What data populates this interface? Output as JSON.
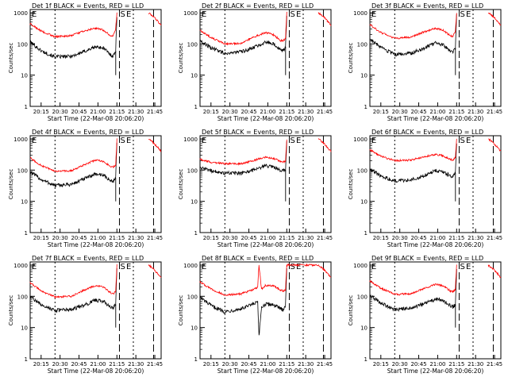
{
  "chart_data": [
    {
      "type": "line",
      "title": "Det 1f BLACK = Events, RED = LLD",
      "xlabel": "Start Time (22-Mar-08 20:06:20)",
      "ylabel": "Counts/sec",
      "x_ticks": [
        "20:15",
        "20:30",
        "20:45",
        "21:00",
        "21:15",
        "21:30",
        "21:45"
      ],
      "y_ticks": [
        "1",
        "10",
        "100",
        "1000"
      ],
      "y_scale": "log",
      "marker_labels": [
        "S",
        "E"
      ],
      "series": [
        {
          "name": "BLACK = Events",
          "color": "#000000"
        },
        {
          "name": "RED = LLD",
          "color": "#ff0000"
        }
      ],
      "x": [
        "20:06",
        "20:15",
        "20:26",
        "20:39",
        "20:48",
        "20:58",
        "21:04",
        "21:10",
        "21:12",
        "21:14",
        "21:15",
        "21:17",
        "21:22",
        "21:28",
        "21:34",
        "21:40",
        "21:44",
        "21:47",
        "21:50"
      ],
      "y_black": [
        120,
        60,
        38,
        40,
        55,
        80,
        75,
        45,
        40,
        60,
        800,
        null,
        null,
        null,
        null,
        null,
        null,
        null,
        null
      ],
      "y_red": [
        450,
        260,
        170,
        185,
        250,
        320,
        280,
        180,
        180,
        300,
        1000,
        null,
        null,
        null,
        null,
        1000,
        750,
        550,
        400
      ],
      "y_black_minimum": [
        null,
        null,
        null,
        null,
        null,
        null,
        null,
        null,
        null,
        null,
        10,
        null,
        null,
        null,
        null,
        null,
        null,
        null,
        null
      ]
    },
    {
      "type": "line",
      "title": "Det 2f BLACK = Events, RED = LLD",
      "xlabel": "Start Time (22-Mar-08 20:06:20)",
      "ylabel": "Counts/sec",
      "x_ticks": [
        "20:15",
        "20:30",
        "20:45",
        "21:00",
        "21:15",
        "21:30",
        "21:45"
      ],
      "y_ticks": [
        "1",
        "10",
        "100",
        "1000"
      ],
      "y_scale": "log",
      "marker_labels": [
        "S",
        "E"
      ],
      "series": [
        {
          "name": "BLACK = Events",
          "color": "#000000"
        },
        {
          "name": "RED = LLD",
          "color": "#ff0000"
        }
      ],
      "x": [
        "20:06",
        "20:15",
        "20:26",
        "20:39",
        "20:48",
        "20:58",
        "21:04",
        "21:10",
        "21:12",
        "21:14",
        "21:15",
        "21:17",
        "21:22",
        "21:28",
        "21:34",
        "21:40",
        "21:44",
        "21:47",
        "21:50"
      ],
      "y_black": [
        130,
        75,
        50,
        55,
        75,
        115,
        105,
        65,
        60,
        80,
        800,
        null,
        null,
        null,
        null,
        null,
        null,
        null,
        null
      ],
      "y_red": [
        280,
        160,
        100,
        105,
        160,
        230,
        200,
        130,
        125,
        150,
        1000,
        null,
        null,
        null,
        null,
        1000,
        750,
        550,
        400
      ],
      "y_black_minimum": [
        null,
        null,
        null,
        null,
        null,
        null,
        null,
        null,
        null,
        null,
        10,
        null,
        null,
        null,
        null,
        null,
        null,
        null,
        null
      ]
    },
    {
      "type": "line",
      "title": "Det 3f BLACK = Events, RED = LLD",
      "xlabel": "Start Time (22-Mar-08 20:06:20)",
      "ylabel": "Counts/sec",
      "x_ticks": [
        "20:15",
        "20:30",
        "20:45",
        "21:00",
        "21:15",
        "21:30",
        "21:45"
      ],
      "y_ticks": [
        "1",
        "10",
        "100",
        "1000"
      ],
      "y_scale": "log",
      "marker_labels": [
        "S",
        "E"
      ],
      "series": [
        {
          "name": "BLACK = Events",
          "color": "#000000"
        },
        {
          "name": "RED = LLD",
          "color": "#ff0000"
        }
      ],
      "x": [
        "20:06",
        "20:15",
        "20:26",
        "20:39",
        "20:48",
        "20:58",
        "21:04",
        "21:10",
        "21:12",
        "21:14",
        "21:15",
        "21:17",
        "21:22",
        "21:28",
        "21:34",
        "21:40",
        "21:44",
        "21:47",
        "21:50"
      ],
      "y_black": [
        150,
        75,
        45,
        50,
        70,
        105,
        95,
        60,
        55,
        75,
        800,
        null,
        null,
        null,
        null,
        null,
        null,
        null,
        null
      ],
      "y_red": [
        420,
        230,
        150,
        165,
        230,
        320,
        280,
        180,
        175,
        250,
        1000,
        null,
        null,
        null,
        null,
        1000,
        750,
        550,
        400
      ],
      "y_black_minimum": [
        null,
        null,
        null,
        null,
        null,
        null,
        null,
        null,
        null,
        null,
        10,
        null,
        null,
        null,
        null,
        null,
        null,
        null,
        null
      ]
    },
    {
      "type": "line",
      "title": "Det 4f BLACK = Events, RED = LLD",
      "xlabel": "Start Time (22-Mar-08 20:06:20)",
      "ylabel": "Counts/sec",
      "x_ticks": [
        "20:15",
        "20:30",
        "20:45",
        "21:00",
        "21:15",
        "21:30",
        "21:45"
      ],
      "y_ticks": [
        "1",
        "10",
        "100",
        "1000"
      ],
      "y_scale": "log",
      "marker_labels": [
        "S",
        "E"
      ],
      "series": [
        {
          "name": "BLACK = Events",
          "color": "#000000"
        },
        {
          "name": "RED = LLD",
          "color": "#ff0000"
        }
      ],
      "x": [
        "20:06",
        "20:15",
        "20:26",
        "20:39",
        "20:48",
        "20:58",
        "21:04",
        "21:10",
        "21:12",
        "21:14",
        "21:15",
        "21:17",
        "21:22",
        "21:28",
        "21:34",
        "21:40",
        "21:44",
        "21:47",
        "21:50"
      ],
      "y_black": [
        90,
        50,
        32,
        35,
        50,
        75,
        70,
        45,
        45,
        55,
        800,
        null,
        null,
        null,
        null,
        null,
        null,
        null,
        null
      ],
      "y_red": [
        250,
        140,
        90,
        95,
        140,
        210,
        190,
        130,
        125,
        140,
        1000,
        null,
        null,
        null,
        null,
        1000,
        750,
        550,
        400
      ],
      "y_black_minimum": [
        null,
        null,
        null,
        null,
        null,
        null,
        null,
        null,
        null,
        null,
        10,
        null,
        null,
        null,
        null,
        null,
        null,
        null,
        null
      ]
    },
    {
      "type": "line",
      "title": "Det 5f BLACK = Events, RED = LLD",
      "xlabel": "Start Time (22-Mar-08 20:06:20)",
      "ylabel": "Counts/sec",
      "x_ticks": [
        "20:15",
        "20:30",
        "20:45",
        "21:00",
        "21:15",
        "21:30",
        "21:45"
      ],
      "y_ticks": [
        "1",
        "10",
        "100",
        "1000"
      ],
      "y_scale": "log",
      "marker_labels": [
        "S",
        "E"
      ],
      "series": [
        {
          "name": "BLACK = Events",
          "color": "#000000"
        },
        {
          "name": "RED = LLD",
          "color": "#ff0000"
        }
      ],
      "x": [
        "20:06",
        "20:15",
        "20:26",
        "20:39",
        "20:48",
        "20:58",
        "21:04",
        "21:10",
        "21:12",
        "21:14",
        "21:15",
        "21:17",
        "21:22",
        "21:28",
        "21:34",
        "21:40",
        "21:44",
        "21:47",
        "21:50"
      ],
      "y_black": [
        120,
        95,
        80,
        80,
        100,
        140,
        130,
        100,
        95,
        100,
        800,
        null,
        null,
        null,
        null,
        null,
        null,
        null,
        null
      ],
      "y_red": [
        220,
        180,
        160,
        160,
        200,
        260,
        240,
        190,
        180,
        190,
        1000,
        null,
        null,
        null,
        null,
        1000,
        750,
        550,
        400
      ],
      "y_black_minimum": [
        null,
        null,
        null,
        null,
        null,
        null,
        null,
        null,
        null,
        null,
        10,
        null,
        null,
        null,
        null,
        null,
        null,
        null,
        null
      ]
    },
    {
      "type": "line",
      "title": "Det 6f BLACK = Events, RED = LLD",
      "xlabel": "Start Time (22-Mar-08 20:06:20)",
      "ylabel": "Counts/sec",
      "x_ticks": [
        "20:15",
        "20:30",
        "20:45",
        "21:00",
        "21:15",
        "21:30",
        "21:45"
      ],
      "y_ticks": [
        "1",
        "10",
        "100",
        "1000"
      ],
      "y_scale": "log",
      "marker_labels": [
        "S",
        "E"
      ],
      "series": [
        {
          "name": "BLACK = Events",
          "color": "#000000"
        },
        {
          "name": "RED = LLD",
          "color": "#ff0000"
        }
      ],
      "x": [
        "20:06",
        "20:15",
        "20:26",
        "20:39",
        "20:48",
        "20:58",
        "21:04",
        "21:10",
        "21:12",
        "21:14",
        "21:15",
        "21:17",
        "21:22",
        "21:28",
        "21:34",
        "21:40",
        "21:44",
        "21:47",
        "21:50"
      ],
      "y_black": [
        110,
        65,
        45,
        48,
        65,
        95,
        90,
        65,
        60,
        80,
        800,
        null,
        null,
        null,
        null,
        null,
        null,
        null,
        null
      ],
      "y_red": [
        450,
        280,
        200,
        210,
        260,
        320,
        290,
        220,
        210,
        250,
        1000,
        null,
        null,
        null,
        null,
        1000,
        750,
        550,
        400
      ],
      "y_black_minimum": [
        null,
        null,
        null,
        null,
        null,
        null,
        null,
        null,
        null,
        null,
        10,
        null,
        null,
        null,
        null,
        null,
        null,
        null,
        null
      ]
    },
    {
      "type": "line",
      "title": "Det 7f BLACK = Events, RED = LLD",
      "xlabel": "Start Time (22-Mar-08 20:06:20)",
      "ylabel": "Counts/sec",
      "x_ticks": [
        "20:15",
        "20:30",
        "20:45",
        "21:00",
        "21:15",
        "21:30",
        "21:45"
      ],
      "y_ticks": [
        "1",
        "10",
        "100",
        "1000"
      ],
      "y_scale": "log",
      "marker_labels": [
        "S",
        "E"
      ],
      "series": [
        {
          "name": "BLACK = Events",
          "color": "#000000"
        },
        {
          "name": "RED = LLD",
          "color": "#ff0000"
        }
      ],
      "x": [
        "20:06",
        "20:15",
        "20:26",
        "20:39",
        "20:48",
        "20:58",
        "21:04",
        "21:10",
        "21:12",
        "21:14",
        "21:15",
        "21:17",
        "21:22",
        "21:28",
        "21:34",
        "21:40",
        "21:44",
        "21:47",
        "21:50"
      ],
      "y_black": [
        100,
        55,
        35,
        38,
        50,
        75,
        70,
        45,
        40,
        55,
        800,
        null,
        null,
        null,
        null,
        null,
        null,
        null,
        null
      ],
      "y_red": [
        280,
        150,
        95,
        100,
        150,
        220,
        200,
        130,
        120,
        140,
        1000,
        null,
        null,
        null,
        null,
        1000,
        750,
        550,
        400
      ],
      "y_black_minimum": [
        null,
        null,
        null,
        null,
        null,
        null,
        null,
        null,
        null,
        null,
        10,
        null,
        null,
        null,
        null,
        null,
        null,
        null,
        null
      ]
    },
    {
      "type": "line",
      "title": "Det 8f BLACK = Events, RED = LLD",
      "xlabel": "Start Time (22-Mar-08 20:06:20)",
      "ylabel": "Counts/sec",
      "x_ticks": [
        "20:15",
        "20:30",
        "20:45",
        "21:00",
        "21:15",
        "21:30",
        "21:45"
      ],
      "y_ticks": [
        "1",
        "10",
        "100",
        "1000"
      ],
      "y_scale": "log",
      "marker_labels": [
        "S",
        "E"
      ],
      "series": [
        {
          "name": "BLACK = Events",
          "color": "#000000"
        },
        {
          "name": "RED = LLD",
          "color": "#ff0000"
        }
      ],
      "x": [
        "20:06",
        "20:15",
        "20:26",
        "20:39",
        "20:48",
        "20:52",
        "20:53",
        "20:55",
        "20:58",
        "21:04",
        "21:10",
        "21:12",
        "21:14",
        "21:15",
        "21:40",
        "21:44",
        "21:47",
        "21:50"
      ],
      "y_black": [
        95,
        50,
        32,
        40,
        55,
        65,
        5,
        45,
        55,
        55,
        40,
        38,
        50,
        800,
        null,
        null,
        null,
        null
      ],
      "y_red": [
        300,
        170,
        110,
        120,
        160,
        200,
        1000,
        170,
        220,
        220,
        160,
        150,
        160,
        1000,
        1000,
        750,
        550,
        400
      ]
    },
    {
      "type": "line",
      "title": "Det 9f BLACK = Events, RED = LLD",
      "xlabel": "Start Time (22-Mar-08 20:06:20)",
      "ylabel": "Counts/sec",
      "x_ticks": [
        "20:15",
        "20:30",
        "20:45",
        "21:00",
        "21:15",
        "21:30",
        "21:45"
      ],
      "y_ticks": [
        "1",
        "10",
        "100",
        "1000"
      ],
      "y_scale": "log",
      "marker_labels": [
        "S",
        "E"
      ],
      "series": [
        {
          "name": "BLACK = Events",
          "color": "#000000"
        },
        {
          "name": "RED = LLD",
          "color": "#ff0000"
        }
      ],
      "x": [
        "20:06",
        "20:15",
        "20:26",
        "20:39",
        "20:48",
        "20:58",
        "21:04",
        "21:10",
        "21:12",
        "21:14",
        "21:15",
        "21:17",
        "21:22",
        "21:28",
        "21:34",
        "21:40",
        "21:44",
        "21:47",
        "21:50"
      ],
      "y_black": [
        110,
        60,
        38,
        42,
        55,
        80,
        75,
        50,
        45,
        55,
        800,
        null,
        null,
        null,
        null,
        null,
        null,
        null,
        null
      ],
      "y_red": [
        320,
        180,
        115,
        120,
        170,
        240,
        220,
        150,
        140,
        170,
        1000,
        null,
        null,
        null,
        null,
        1000,
        750,
        550,
        400
      ],
      "y_black_minimum": [
        null,
        null,
        null,
        null,
        null,
        null,
        null,
        null,
        null,
        null,
        10,
        null,
        null,
        null,
        null,
        null,
        null,
        null,
        null
      ]
    }
  ]
}
